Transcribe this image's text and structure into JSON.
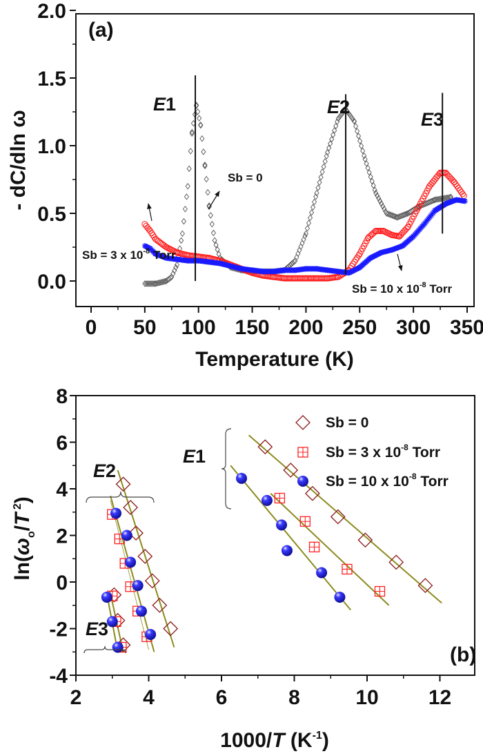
{
  "chart_data": [
    {
      "type": "scatter",
      "panel_label": "(a)",
      "xlabel": "Temperature (K)",
      "ylabel": "- dC/dln ω",
      "xlim": [
        -15,
        357
      ],
      "ylim": [
        -0.2,
        2.0
      ],
      "xticks": [
        "0",
        "50",
        "100",
        "150",
        "200",
        "250",
        "300",
        "350"
      ],
      "yticks": [
        "0.0",
        "0.5",
        "1.0",
        "1.5",
        "2.0"
      ],
      "grid": false,
      "series": [
        {
          "name": "Sb = 0",
          "marker": "open-diamond",
          "color": "#555555",
          "x": [
            50,
            60,
            70,
            75,
            80,
            85,
            90,
            94,
            98,
            102,
            106,
            110,
            115,
            120,
            130,
            140,
            150,
            160,
            170,
            180,
            190,
            200,
            210,
            220,
            230,
            237,
            245,
            255,
            265,
            275,
            285,
            295,
            305,
            320,
            335
          ],
          "y": [
            -0.02,
            -0.02,
            0.0,
            0.03,
            0.12,
            0.35,
            0.7,
            1.1,
            1.3,
            1.15,
            0.85,
            0.55,
            0.3,
            0.17,
            0.1,
            0.08,
            0.07,
            0.07,
            0.07,
            0.08,
            0.15,
            0.35,
            0.65,
            0.95,
            1.2,
            1.27,
            1.18,
            0.9,
            0.65,
            0.5,
            0.47,
            0.5,
            0.55,
            0.6,
            0.62
          ]
        },
        {
          "name": "Sb = 3 x 10^-8 Torr",
          "marker": "open-circle",
          "color": "#ff1a1a",
          "x": [
            50,
            55,
            60,
            70,
            80,
            90,
            100,
            110,
            120,
            130,
            140,
            150,
            160,
            170,
            180,
            190,
            200,
            210,
            220,
            230,
            240,
            250,
            258,
            265,
            272,
            280,
            287,
            295,
            305,
            315,
            325,
            330,
            338,
            347
          ],
          "y": [
            0.42,
            0.37,
            0.31,
            0.25,
            0.21,
            0.19,
            0.18,
            0.17,
            0.15,
            0.12,
            0.09,
            0.06,
            0.04,
            0.03,
            0.02,
            0.02,
            0.02,
            0.02,
            0.02,
            0.03,
            0.08,
            0.2,
            0.32,
            0.37,
            0.37,
            0.34,
            0.33,
            0.4,
            0.55,
            0.7,
            0.8,
            0.8,
            0.73,
            0.63
          ]
        },
        {
          "name": "Sb = 10 x 10^-8 Torr",
          "marker": "star",
          "color": "#1a1aff",
          "x": [
            50,
            55,
            60,
            70,
            80,
            90,
            100,
            110,
            120,
            130,
            140,
            150,
            160,
            170,
            180,
            190,
            200,
            210,
            220,
            230,
            240,
            250,
            260,
            270,
            280,
            290,
            300,
            310,
            320,
            330,
            340,
            348
          ],
          "y": [
            0.26,
            0.24,
            0.2,
            0.17,
            0.16,
            0.15,
            0.15,
            0.14,
            0.13,
            0.11,
            0.09,
            0.08,
            0.07,
            0.07,
            0.08,
            0.08,
            0.09,
            0.09,
            0.08,
            0.07,
            0.06,
            0.1,
            0.17,
            0.21,
            0.23,
            0.26,
            0.33,
            0.42,
            0.52,
            0.57,
            0.6,
            0.59
          ]
        }
      ],
      "peak_markers": [
        {
          "label": "E1",
          "x": 97,
          "y_range": [
            0.0,
            1.52
          ]
        },
        {
          "label": "E2",
          "x": 237,
          "y_range": [
            0.05,
            1.38
          ]
        },
        {
          "label": "E3",
          "x": 327,
          "y_range": [
            0.35,
            1.39
          ]
        }
      ],
      "annotations": {
        "sb0": "Sb = 0",
        "sb3": {
          "text": "Sb = 3 x 10",
          "sup": "-8",
          "tail": " Torr"
        },
        "sb10": {
          "text": "Sb = 10 x 10",
          "sup": "-8",
          "tail": " Torr"
        }
      }
    },
    {
      "type": "scatter",
      "panel_label": "(b)",
      "xlabel": {
        "pre": "1000/",
        "it": "T",
        "mid": " (K",
        "sup": "-1",
        "post": ")"
      },
      "ylabel": {
        "pre": "ln(",
        "it": "ω",
        "sub": "o",
        "slash": "/",
        "it2": "T",
        "sup": " 2",
        "post": ")"
      },
      "xlim": [
        2,
        13
      ],
      "ylim": [
        -4,
        8
      ],
      "xticks": [
        "2",
        "4",
        "6",
        "8",
        "10",
        "12"
      ],
      "yticks": [
        "-4",
        "-2",
        "0",
        "2",
        "4",
        "6",
        "8"
      ],
      "grid": false,
      "legend_position": "top-right",
      "legend": [
        {
          "text": "Sb =  0",
          "sup": "",
          "tail": ""
        },
        {
          "text": "Sb =  3 x 10",
          "sup": "-8",
          "tail": " Torr"
        },
        {
          "text": "Sb = 10 x 10",
          "sup": "-8",
          "tail": " Torr"
        }
      ],
      "groups": [
        "E1",
        "E2",
        "E3"
      ],
      "series": [
        {
          "name": "Sb = 0",
          "group": "E1",
          "marker": "open-diamond",
          "color": "#8b1a1a",
          "x": [
            7.2,
            7.9,
            8.5,
            9.2,
            9.95,
            10.8,
            11.6
          ],
          "y": [
            5.8,
            4.8,
            3.8,
            2.8,
            1.8,
            0.85,
            -0.15
          ],
          "fit": [
            [
              6.75,
              6.3
            ],
            [
              12.05,
              -0.9
            ]
          ]
        },
        {
          "name": "Sb = 3 x 10^-8 Torr",
          "group": "E1",
          "marker": "boxed-plus",
          "color": "#ff2020",
          "x": [
            7.6,
            8.3,
            8.55,
            9.45,
            10.35
          ],
          "y": [
            3.6,
            2.6,
            1.5,
            0.55,
            -0.4
          ],
          "fit": [
            [
              7.35,
              3.8
            ],
            [
              10.6,
              -1.0
            ]
          ]
        },
        {
          "name": "Sb = 10 x 10^-8 Torr",
          "group": "E1",
          "marker": "sphere",
          "color": "#1a1aff",
          "x": [
            6.55,
            7.25,
            7.65,
            7.8,
            8.75,
            9.25
          ],
          "y": [
            4.45,
            3.5,
            2.45,
            1.35,
            0.4,
            -0.65
          ],
          "fit": [
            [
              6.25,
              5.0
            ],
            [
              9.55,
              -1.2
            ]
          ]
        },
        {
          "name": "Sb = 0",
          "group": "E2",
          "marker": "open-diamond",
          "color": "#8b1a1a",
          "x": [
            3.3,
            3.5,
            3.65,
            3.9,
            4.1,
            4.3,
            4.6
          ],
          "y": [
            4.2,
            3.2,
            2.1,
            1.1,
            0.05,
            -1.0,
            -2.0
          ],
          "fit": [
            [
              3.15,
              4.8
            ],
            [
              4.7,
              -2.8
            ]
          ]
        },
        {
          "name": "Sb = 3 x 10^-8 Torr",
          "group": "E2",
          "marker": "boxed-plus",
          "color": "#ff2020",
          "x": [
            3.0,
            3.2,
            3.35,
            3.5,
            3.7,
            3.95
          ],
          "y": [
            2.9,
            1.85,
            0.8,
            -0.2,
            -1.25,
            -2.35
          ],
          "fit": [
            [
              2.95,
              3.5
            ],
            [
              4.0,
              -2.9
            ]
          ]
        },
        {
          "name": "Sb = 10 x 10^-8 Torr",
          "group": "E2",
          "marker": "sphere",
          "color": "#1a1aff",
          "x": [
            3.1,
            3.4,
            3.5,
            3.7,
            3.8,
            4.05
          ],
          "y": [
            2.95,
            2.0,
            0.85,
            -0.15,
            -1.25,
            -2.25
          ],
          "fit": [
            [
              2.95,
              3.7
            ],
            [
              4.15,
              -3.0
            ]
          ]
        },
        {
          "name": "Sb = 0",
          "group": "E3",
          "marker": "open-diamond",
          "color": "#8b1a1a",
          "x": [
            3.05,
            3.15,
            3.3
          ],
          "y": [
            -0.55,
            -1.65,
            -2.7
          ],
          "fit": [
            [
              2.95,
              -0.5
            ],
            [
              3.3,
              -3.0
            ]
          ]
        },
        {
          "name": "Sb = 3 x 10^-8 Torr",
          "group": "E3",
          "marker": "boxed-plus",
          "color": "#ff2020",
          "x": [
            3.0,
            3.1,
            3.25
          ],
          "y": [
            -0.6,
            -1.7,
            -2.8
          ],
          "fit": null
        },
        {
          "name": "Sb = 10 x 10^-8 Torr",
          "group": "E3",
          "marker": "sphere",
          "color": "#1a1aff",
          "x": [
            2.85,
            3.0,
            3.15
          ],
          "y": [
            -0.65,
            -1.7,
            -2.8
          ],
          "fit": [
            [
              2.85,
              -0.5
            ],
            [
              3.15,
              -3.0
            ]
          ]
        }
      ],
      "fit_line_color": "#8c8a1e"
    }
  ]
}
